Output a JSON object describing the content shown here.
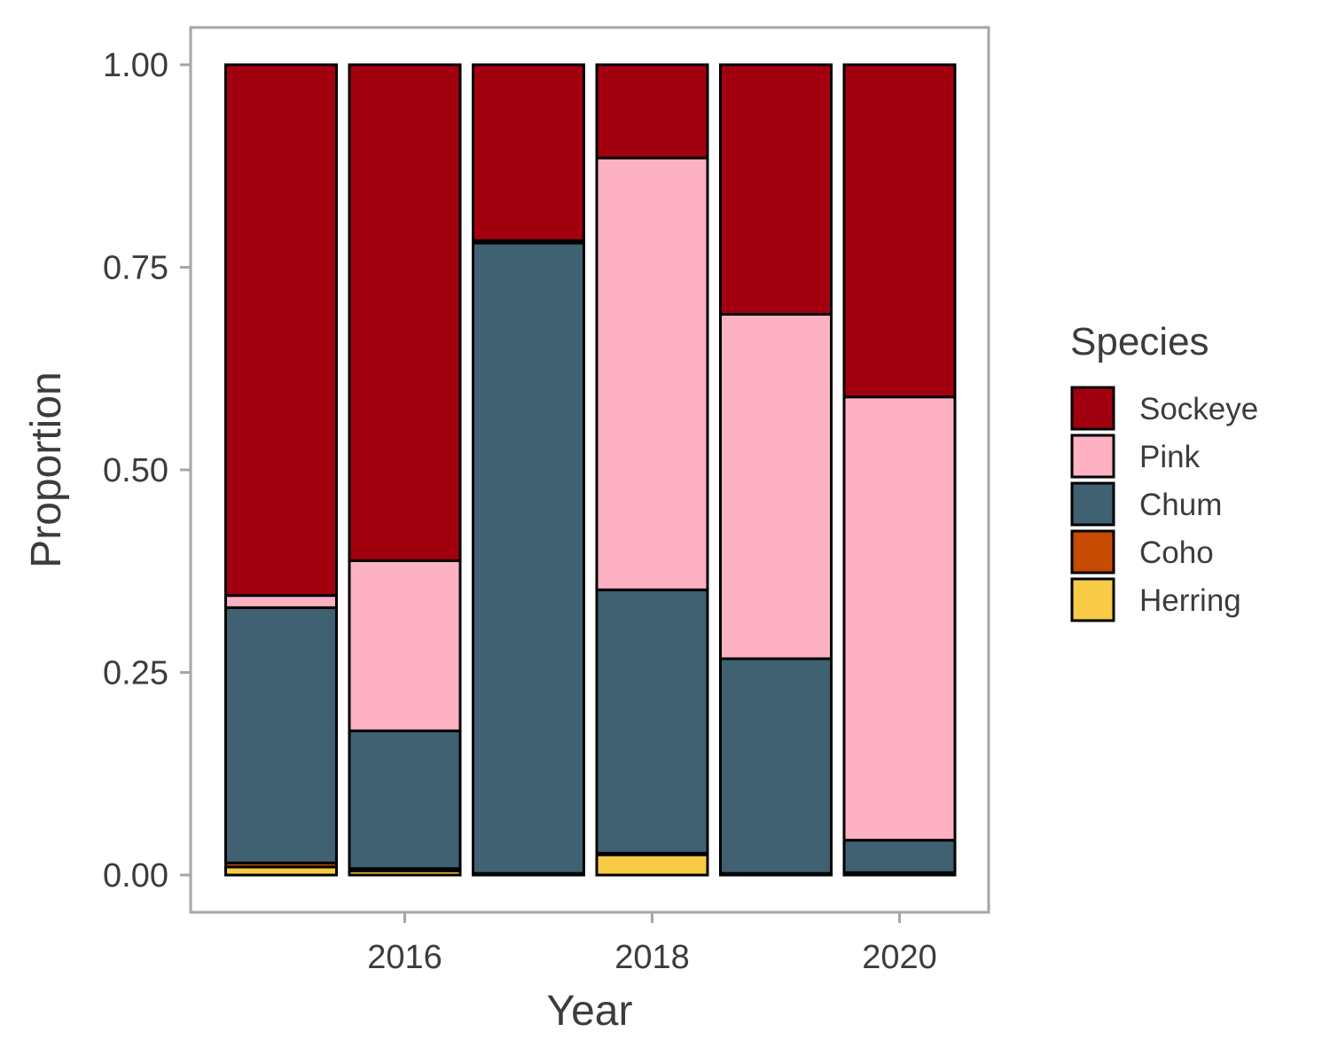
{
  "chart_data": {
    "type": "bar",
    "stacked": true,
    "xlabel": "Year",
    "ylabel": "Proportion",
    "x": [
      2015,
      2016,
      2017,
      2018,
      2019,
      2020
    ],
    "x_ticks": [
      "2016",
      "2018",
      "2020"
    ],
    "y_ticks": [
      "0.00",
      "0.25",
      "0.50",
      "0.75",
      "1.00"
    ],
    "ylim": [
      0,
      1
    ],
    "grid": false,
    "legend": {
      "title": "Species",
      "position": "right"
    },
    "series": [
      {
        "name": "Herring",
        "color": "#F7CB45",
        "values": [
          0.01,
          0.005,
          0.0,
          0.025,
          0.0,
          0.0
        ]
      },
      {
        "name": "Coho",
        "color": "#C84B04",
        "values": [
          0.005,
          0.003,
          0.002,
          0.002,
          0.002,
          0.003
        ]
      },
      {
        "name": "Chum",
        "color": "#3F6172",
        "values": [
          0.315,
          0.17,
          0.778,
          0.325,
          0.265,
          0.04
        ]
      },
      {
        "name": "Pink",
        "color": "#FDB1C2",
        "values": [
          0.015,
          0.21,
          0.003,
          0.533,
          0.425,
          0.547
        ]
      },
      {
        "name": "Sockeye",
        "color": "#A3000F",
        "values": [
          0.655,
          0.612,
          0.217,
          0.115,
          0.308,
          0.41
        ]
      }
    ],
    "legend_order": [
      "Sockeye",
      "Pink",
      "Chum",
      "Coho",
      "Herring"
    ]
  }
}
